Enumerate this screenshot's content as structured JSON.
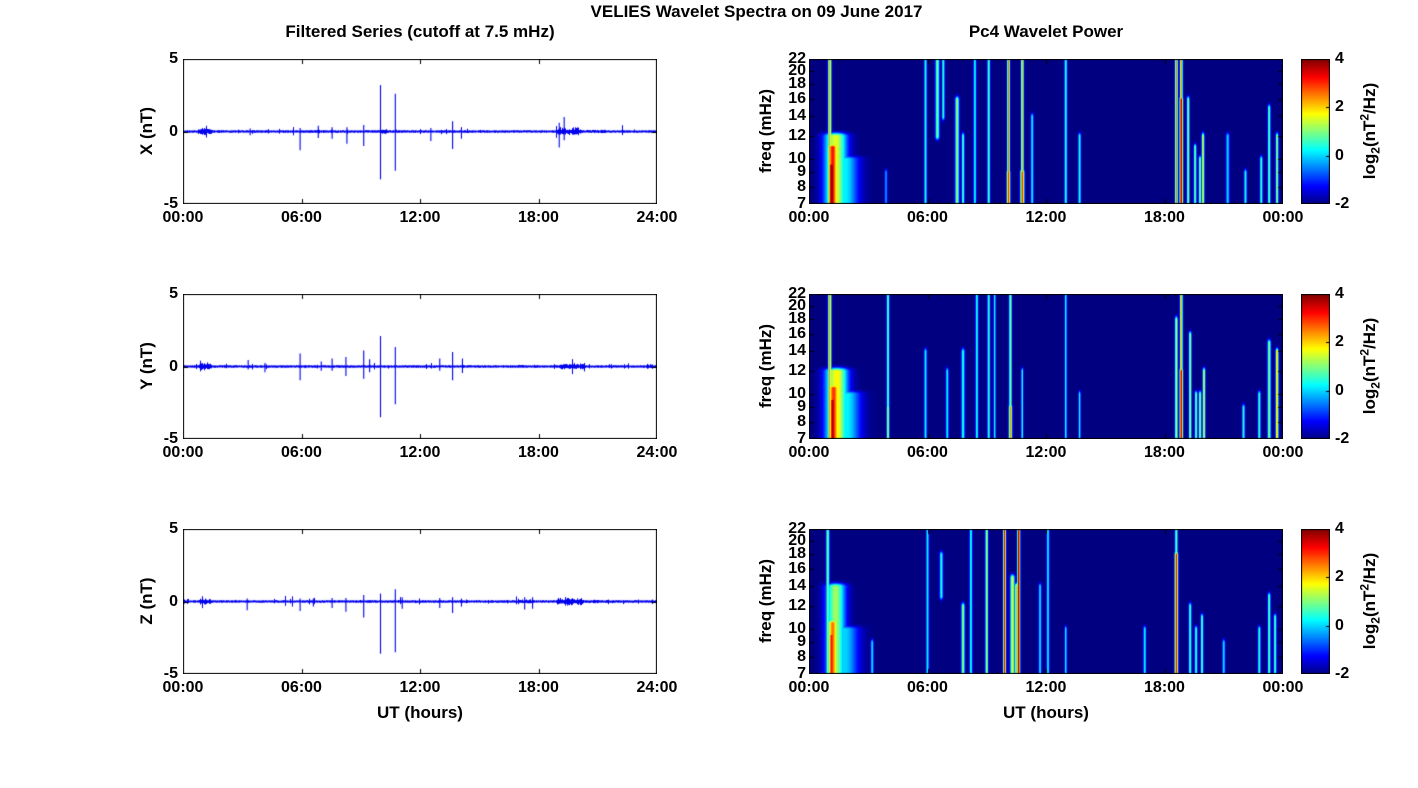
{
  "figure": {
    "title": "VELIES Wavelet Spectra on 09 June 2017",
    "left_title": "Filtered Series (cutoff at 7.5 mHz)",
    "right_title": "Pc4 Wavelet Power",
    "xlabel": "UT (hours)",
    "colorbar_label": {
      "pre": "log",
      "sub": "2",
      "mid": "(nT",
      "sup": "2",
      "post": "/Hz)"
    },
    "colors": {
      "trace_blue": "#0000EE",
      "axis_black": "#000000",
      "background": "#ffffff"
    }
  },
  "chart_data": [
    {
      "type": "line",
      "panel": "X",
      "ylabel": "X (nT)",
      "ylim": [
        -5,
        5
      ],
      "yticks": [
        5,
        0,
        -5
      ],
      "x_range_hours": [
        0,
        24
      ],
      "xtick_labels": [
        "00:00",
        "06:00",
        "12:00",
        "18:00",
        "24:00"
      ],
      "line_color": "#0000EE",
      "seed": 7,
      "noise_base": 0.09,
      "noise_bursts": [
        {
          "start": 0.7,
          "end": 1.6,
          "amp": 0.3
        },
        {
          "start": 6.7,
          "end": 7.1,
          "amp": 0.16
        },
        {
          "start": 9.9,
          "end": 10.5,
          "amp": 0.22
        },
        {
          "start": 18.8,
          "end": 20.3,
          "amp": 0.32
        },
        {
          "start": 20.3,
          "end": 21.6,
          "amp": 0.15
        }
      ],
      "spikes": [
        {
          "t": 3.4,
          "min": -0.25,
          "max": 0.2
        },
        {
          "t": 5.93,
          "min": -1.3,
          "max": 0.25
        },
        {
          "t": 6.85,
          "min": -0.45,
          "max": 0.4
        },
        {
          "t": 7.55,
          "min": -0.5,
          "max": 0.3
        },
        {
          "t": 8.3,
          "min": -0.85,
          "max": 0.3
        },
        {
          "t": 9.15,
          "min": -1.0,
          "max": 0.45
        },
        {
          "t": 10.0,
          "min": -3.3,
          "max": 3.2
        },
        {
          "t": 10.75,
          "min": -2.7,
          "max": 2.6
        },
        {
          "t": 12.55,
          "min": -0.65,
          "max": 0.25
        },
        {
          "t": 13.65,
          "min": -1.2,
          "max": 0.7
        },
        {
          "t": 14.1,
          "min": -0.5,
          "max": 0.3
        },
        {
          "t": 19.05,
          "min": -1.1,
          "max": 0.6
        },
        {
          "t": 19.3,
          "min": -0.6,
          "max": 1.0
        }
      ]
    },
    {
      "type": "line",
      "panel": "Y",
      "ylabel": "Y (nT)",
      "ylim": [
        -5,
        5
      ],
      "yticks": [
        5,
        0,
        -5
      ],
      "x_range_hours": [
        0,
        24
      ],
      "xtick_labels": [
        "00:00",
        "06:00",
        "12:00",
        "18:00",
        "24:00"
      ],
      "line_color": "#0000EE",
      "seed": 11,
      "noise_base": 0.09,
      "noise_bursts": [
        {
          "start": 0.7,
          "end": 1.6,
          "amp": 0.32
        },
        {
          "start": 16.8,
          "end": 18.0,
          "amp": 0.13
        },
        {
          "start": 18.9,
          "end": 20.5,
          "amp": 0.24
        },
        {
          "start": 23.3,
          "end": 24.0,
          "amp": 0.17
        }
      ],
      "spikes": [
        {
          "t": 3.3,
          "min": -0.2,
          "max": 0.45
        },
        {
          "t": 4.15,
          "min": -0.4,
          "max": 0.25
        },
        {
          "t": 5.93,
          "min": -0.95,
          "max": 0.9
        },
        {
          "t": 7.0,
          "min": -0.3,
          "max": 0.35
        },
        {
          "t": 7.55,
          "min": -0.3,
          "max": 0.55
        },
        {
          "t": 8.25,
          "min": -0.65,
          "max": 0.65
        },
        {
          "t": 9.15,
          "min": -0.85,
          "max": 1.1
        },
        {
          "t": 9.45,
          "min": -0.4,
          "max": 0.5
        },
        {
          "t": 10.0,
          "min": -3.5,
          "max": 2.1
        },
        {
          "t": 10.75,
          "min": -2.6,
          "max": 1.35
        },
        {
          "t": 13.0,
          "min": -0.3,
          "max": 0.55
        },
        {
          "t": 13.65,
          "min": -0.95,
          "max": 1.0
        },
        {
          "t": 14.15,
          "min": -0.45,
          "max": 0.55
        }
      ]
    },
    {
      "type": "line",
      "panel": "Z",
      "ylabel": "Z (nT)",
      "ylim": [
        -5,
        5
      ],
      "yticks": [
        5,
        0,
        -5
      ],
      "x_range_hours": [
        0,
        24
      ],
      "xtick_labels": [
        "00:00",
        "06:00",
        "12:00",
        "18:00",
        "24:00"
      ],
      "line_color": "#0000EE",
      "seed": 13,
      "noise_base": 0.09,
      "noise_bursts": [
        {
          "start": 0.7,
          "end": 1.6,
          "amp": 0.24
        },
        {
          "start": 16.8,
          "end": 17.9,
          "amp": 0.17
        },
        {
          "start": 18.8,
          "end": 20.4,
          "amp": 0.3
        },
        {
          "start": 20.4,
          "end": 22.2,
          "amp": 0.13
        }
      ],
      "spikes": [
        {
          "t": 3.25,
          "min": -0.6,
          "max": 0.2
        },
        {
          "t": 5.93,
          "min": -0.65,
          "max": 0.2
        },
        {
          "t": 6.6,
          "min": -0.35,
          "max": 0.2
        },
        {
          "t": 7.55,
          "min": -0.45,
          "max": 0.25
        },
        {
          "t": 8.25,
          "min": -0.7,
          "max": 0.25
        },
        {
          "t": 9.15,
          "min": -1.1,
          "max": 0.45
        },
        {
          "t": 10.0,
          "min": -3.6,
          "max": 0.55
        },
        {
          "t": 10.75,
          "min": -3.5,
          "max": 0.85
        },
        {
          "t": 11.1,
          "min": -0.5,
          "max": 0.3
        },
        {
          "t": 13.0,
          "min": -0.45,
          "max": 0.25
        },
        {
          "t": 13.65,
          "min": -0.8,
          "max": 0.3
        },
        {
          "t": 14.1,
          "min": -0.35,
          "max": 0.2
        },
        {
          "t": 17.3,
          "min": -0.55,
          "max": 0.3
        },
        {
          "t": 17.7,
          "min": -0.5,
          "max": 0.3
        }
      ]
    },
    {
      "type": "heatmap",
      "panel": "X",
      "ylabel": "freq (mHz)",
      "freq_range": [
        7,
        22
      ],
      "log_y": true,
      "yticks": [
        22,
        20,
        18,
        16,
        14,
        12,
        10,
        9,
        8,
        7
      ],
      "x_range_hours": [
        0,
        24
      ],
      "xtick_labels": [
        "00:00",
        "06:00",
        "12:00",
        "18:00",
        "00:00"
      ],
      "clim": [
        -2,
        4
      ],
      "colormap": "jet",
      "colorbar_ticks": [
        4,
        2,
        0,
        -2
      ],
      "features": [
        {
          "t": 1.05,
          "w": 0.06,
          "f1": 7,
          "f2": 22,
          "v": 2.3
        },
        {
          "t": 1.15,
          "w": 0.1,
          "f1": 7,
          "f2": 9.5,
          "v": 4.3
        },
        {
          "t": 1.2,
          "w": 0.2,
          "f1": 7,
          "f2": 11,
          "v": 3.2
        },
        {
          "t": 1.35,
          "w": 0.4,
          "f1": 7,
          "f2": 12,
          "v": 1.6
        },
        {
          "t": 1.8,
          "w": 0.5,
          "f1": 7,
          "f2": 10,
          "v": 0.2
        },
        {
          "t": 3.9,
          "w": 0.05,
          "f1": 7,
          "f2": 9,
          "v": -0.3
        },
        {
          "t": 5.9,
          "w": 0.05,
          "f1": 7,
          "f2": 22,
          "v": 0.5
        },
        {
          "t": 6.5,
          "w": 0.07,
          "f1": 12,
          "f2": 22,
          "v": 1.0
        },
        {
          "t": 6.8,
          "w": 0.05,
          "f1": 14,
          "f2": 22,
          "v": 0.6
        },
        {
          "t": 7.5,
          "w": 0.07,
          "f1": 7,
          "f2": 16,
          "v": 1.2
        },
        {
          "t": 7.8,
          "w": 0.05,
          "f1": 7,
          "f2": 12,
          "v": 0.8
        },
        {
          "t": 8.4,
          "w": 0.05,
          "f1": 7,
          "f2": 22,
          "v": 0.4
        },
        {
          "t": 9.1,
          "w": 0.05,
          "f1": 7,
          "f2": 22,
          "v": 0.8
        },
        {
          "t": 10.1,
          "w": 0.05,
          "f1": 7,
          "f2": 22,
          "v": 2.6
        },
        {
          "t": 10.1,
          "w": 0.06,
          "f1": 7,
          "f2": 9,
          "v": 3.0
        },
        {
          "t": 10.8,
          "w": 0.05,
          "f1": 7,
          "f2": 22,
          "v": 2.2
        },
        {
          "t": 10.8,
          "w": 0.07,
          "f1": 7,
          "f2": 9,
          "v": 3.0
        },
        {
          "t": 11.3,
          "w": 0.05,
          "f1": 7,
          "f2": 14,
          "v": 0.3
        },
        {
          "t": 13.0,
          "w": 0.05,
          "f1": 7,
          "f2": 22,
          "v": 0.6
        },
        {
          "t": 13.7,
          "w": 0.05,
          "f1": 7,
          "f2": 12,
          "v": 0.5
        },
        {
          "t": 18.6,
          "w": 0.05,
          "f1": 7,
          "f2": 22,
          "v": 2.6
        },
        {
          "t": 18.85,
          "w": 0.06,
          "f1": 7,
          "f2": 16,
          "v": 3.8
        },
        {
          "t": 18.85,
          "w": 0.05,
          "f1": 16,
          "f2": 22,
          "v": 2.4
        },
        {
          "t": 19.2,
          "w": 0.05,
          "f1": 7,
          "f2": 16,
          "v": 1.2
        },
        {
          "t": 19.55,
          "w": 0.05,
          "f1": 7,
          "f2": 11,
          "v": 1.0
        },
        {
          "t": 19.8,
          "w": 0.05,
          "f1": 7,
          "f2": 10,
          "v": 1.1
        },
        {
          "t": 19.95,
          "w": 0.05,
          "f1": 7,
          "f2": 12,
          "v": 1.6
        },
        {
          "t": 21.2,
          "w": 0.06,
          "f1": 7,
          "f2": 12,
          "v": 0.1
        },
        {
          "t": 22.1,
          "w": 0.05,
          "f1": 7,
          "f2": 9,
          "v": 0.5
        },
        {
          "t": 22.9,
          "w": 0.05,
          "f1": 7,
          "f2": 10,
          "v": 0.7
        },
        {
          "t": 23.3,
          "w": 0.05,
          "f1": 7,
          "f2": 15,
          "v": 0.9
        },
        {
          "t": 23.7,
          "w": 0.05,
          "f1": 7,
          "f2": 12,
          "v": 1.2
        }
      ]
    },
    {
      "type": "heatmap",
      "panel": "Y",
      "ylabel": "freq (mHz)",
      "freq_range": [
        7,
        22
      ],
      "log_y": true,
      "yticks": [
        22,
        20,
        18,
        16,
        14,
        12,
        10,
        9,
        8,
        7
      ],
      "x_range_hours": [
        0,
        24
      ],
      "xtick_labels": [
        "00:00",
        "06:00",
        "12:00",
        "18:00",
        "00:00"
      ],
      "clim": [
        -2,
        4
      ],
      "colormap": "jet",
      "colorbar_ticks": [
        4,
        2,
        0,
        -2
      ],
      "features": [
        {
          "t": 1.05,
          "w": 0.06,
          "f1": 7,
          "f2": 22,
          "v": 2.4
        },
        {
          "t": 1.2,
          "w": 0.12,
          "f1": 7,
          "f2": 9.5,
          "v": 3.8
        },
        {
          "t": 1.25,
          "w": 0.22,
          "f1": 7,
          "f2": 10.5,
          "v": 3.0
        },
        {
          "t": 1.4,
          "w": 0.4,
          "f1": 7,
          "f2": 12,
          "v": 1.8
        },
        {
          "t": 1.9,
          "w": 0.5,
          "f1": 7,
          "f2": 10,
          "v": 0.2
        },
        {
          "t": 4.0,
          "w": 0.05,
          "f1": 7,
          "f2": 22,
          "v": 0.9
        },
        {
          "t": 4.0,
          "w": 0.05,
          "f1": 7,
          "f2": 9,
          "v": 1.4
        },
        {
          "t": 5.9,
          "w": 0.05,
          "f1": 7,
          "f2": 14,
          "v": 0.3
        },
        {
          "t": 7.0,
          "w": 0.05,
          "f1": 7,
          "f2": 12,
          "v": 0.3
        },
        {
          "t": 7.8,
          "w": 0.06,
          "f1": 7,
          "f2": 14,
          "v": 0.5
        },
        {
          "t": 8.5,
          "w": 0.05,
          "f1": 7,
          "f2": 22,
          "v": 0.5
        },
        {
          "t": 9.1,
          "w": 0.05,
          "f1": 7,
          "f2": 22,
          "v": 0.6
        },
        {
          "t": 9.4,
          "w": 0.04,
          "f1": 7,
          "f2": 22,
          "v": 0.4
        },
        {
          "t": 10.2,
          "w": 0.05,
          "f1": 7,
          "f2": 22,
          "v": 1.2
        },
        {
          "t": 10.2,
          "w": 0.06,
          "f1": 7,
          "f2": 9,
          "v": 2.4
        },
        {
          "t": 10.8,
          "w": 0.04,
          "f1": 7,
          "f2": 12,
          "v": 0.5
        },
        {
          "t": 13.0,
          "w": 0.04,
          "f1": 7,
          "f2": 22,
          "v": 0.4
        },
        {
          "t": 13.7,
          "w": 0.04,
          "f1": 7,
          "f2": 10,
          "v": 0.4
        },
        {
          "t": 18.6,
          "w": 0.05,
          "f1": 7,
          "f2": 18,
          "v": 1.5
        },
        {
          "t": 18.85,
          "w": 0.06,
          "f1": 7,
          "f2": 12,
          "v": 3.6
        },
        {
          "t": 18.85,
          "w": 0.05,
          "f1": 12,
          "f2": 22,
          "v": 2.2
        },
        {
          "t": 19.3,
          "w": 0.05,
          "f1": 7,
          "f2": 16,
          "v": 1.3
        },
        {
          "t": 19.6,
          "w": 0.05,
          "f1": 7,
          "f2": 10,
          "v": 1.0
        },
        {
          "t": 19.8,
          "w": 0.05,
          "f1": 7,
          "f2": 10,
          "v": 1.2
        },
        {
          "t": 20.0,
          "w": 0.05,
          "f1": 7,
          "f2": 12,
          "v": 1.6
        },
        {
          "t": 22.0,
          "w": 0.05,
          "f1": 7,
          "f2": 9,
          "v": 0.6
        },
        {
          "t": 22.8,
          "w": 0.05,
          "f1": 7,
          "f2": 10,
          "v": 0.7
        },
        {
          "t": 23.3,
          "w": 0.06,
          "f1": 7,
          "f2": 15,
          "v": 1.1
        },
        {
          "t": 23.7,
          "w": 0.05,
          "f1": 7,
          "f2": 14,
          "v": 2.2
        }
      ]
    },
    {
      "type": "heatmap",
      "panel": "Z",
      "ylabel": "freq (mHz)",
      "freq_range": [
        7,
        22
      ],
      "log_y": true,
      "yticks": [
        22,
        20,
        18,
        16,
        14,
        12,
        10,
        9,
        8,
        7
      ],
      "x_range_hours": [
        0,
        24
      ],
      "xtick_labels": [
        "00:00",
        "06:00",
        "12:00",
        "18:00",
        "00:00"
      ],
      "clim": [
        -2,
        4
      ],
      "colormap": "jet",
      "colorbar_ticks": [
        4,
        2,
        0,
        -2
      ],
      "features": [
        {
          "t": 0.95,
          "w": 0.06,
          "f1": 7,
          "f2": 22,
          "v": 1.0
        },
        {
          "t": 1.15,
          "w": 0.12,
          "f1": 7,
          "f2": 9.5,
          "v": 3.2
        },
        {
          "t": 1.2,
          "w": 0.2,
          "f1": 7,
          "f2": 10.5,
          "v": 2.6
        },
        {
          "t": 1.35,
          "w": 0.35,
          "f1": 7,
          "f2": 14,
          "v": 1.2
        },
        {
          "t": 1.8,
          "w": 0.5,
          "f1": 7,
          "f2": 10,
          "v": 0.0
        },
        {
          "t": 3.2,
          "w": 0.05,
          "f1": 7,
          "f2": 9,
          "v": 0.2
        },
        {
          "t": 6.0,
          "w": 0.05,
          "f1": 7,
          "f2": 22,
          "v": 0.3
        },
        {
          "t": 6.7,
          "w": 0.06,
          "f1": 13,
          "f2": 18,
          "v": 0.5
        },
        {
          "t": 7.8,
          "w": 0.06,
          "f1": 7,
          "f2": 12,
          "v": 1.2
        },
        {
          "t": 8.2,
          "w": 0.05,
          "f1": 7,
          "f2": 22,
          "v": 0.5
        },
        {
          "t": 9.0,
          "w": 0.05,
          "f1": 7,
          "f2": 22,
          "v": 1.4
        },
        {
          "t": 9.9,
          "w": 0.05,
          "f1": 7,
          "f2": 22,
          "v": 3.3
        },
        {
          "t": 9.9,
          "w": 0.05,
          "f1": 7,
          "f2": 9,
          "v": 2.8
        },
        {
          "t": 10.3,
          "w": 0.08,
          "f1": 7,
          "f2": 15,
          "v": 1.6
        },
        {
          "t": 10.5,
          "w": 0.05,
          "f1": 7,
          "f2": 14,
          "v": 2.2
        },
        {
          "t": 10.62,
          "w": 0.05,
          "f1": 7,
          "f2": 22,
          "v": 3.9
        },
        {
          "t": 11.7,
          "w": 0.05,
          "f1": 7,
          "f2": 14,
          "v": 0.2
        },
        {
          "t": 12.1,
          "w": 0.05,
          "f1": 7,
          "f2": 22,
          "v": 0.3
        },
        {
          "t": 13.0,
          "w": 0.04,
          "f1": 7,
          "f2": 10,
          "v": 0.3
        },
        {
          "t": 17.0,
          "w": 0.05,
          "f1": 7,
          "f2": 10,
          "v": 0.3
        },
        {
          "t": 18.6,
          "w": 0.06,
          "f1": 7,
          "f2": 18,
          "v": 3.2
        },
        {
          "t": 18.6,
          "w": 0.05,
          "f1": 18,
          "f2": 22,
          "v": 1.0
        },
        {
          "t": 19.3,
          "w": 0.05,
          "f1": 7,
          "f2": 12,
          "v": 0.8
        },
        {
          "t": 19.6,
          "w": 0.05,
          "f1": 7,
          "f2": 10,
          "v": 0.7
        },
        {
          "t": 19.9,
          "w": 0.05,
          "f1": 7,
          "f2": 11,
          "v": 0.9
        },
        {
          "t": 21.0,
          "w": 0.05,
          "f1": 7,
          "f2": 9,
          "v": 0.2
        },
        {
          "t": 22.8,
          "w": 0.05,
          "f1": 7,
          "f2": 10,
          "v": 0.6
        },
        {
          "t": 23.3,
          "w": 0.05,
          "f1": 7,
          "f2": 13,
          "v": 0.9
        },
        {
          "t": 23.6,
          "w": 0.05,
          "f1": 7,
          "f2": 11,
          "v": 0.8
        }
      ]
    }
  ]
}
